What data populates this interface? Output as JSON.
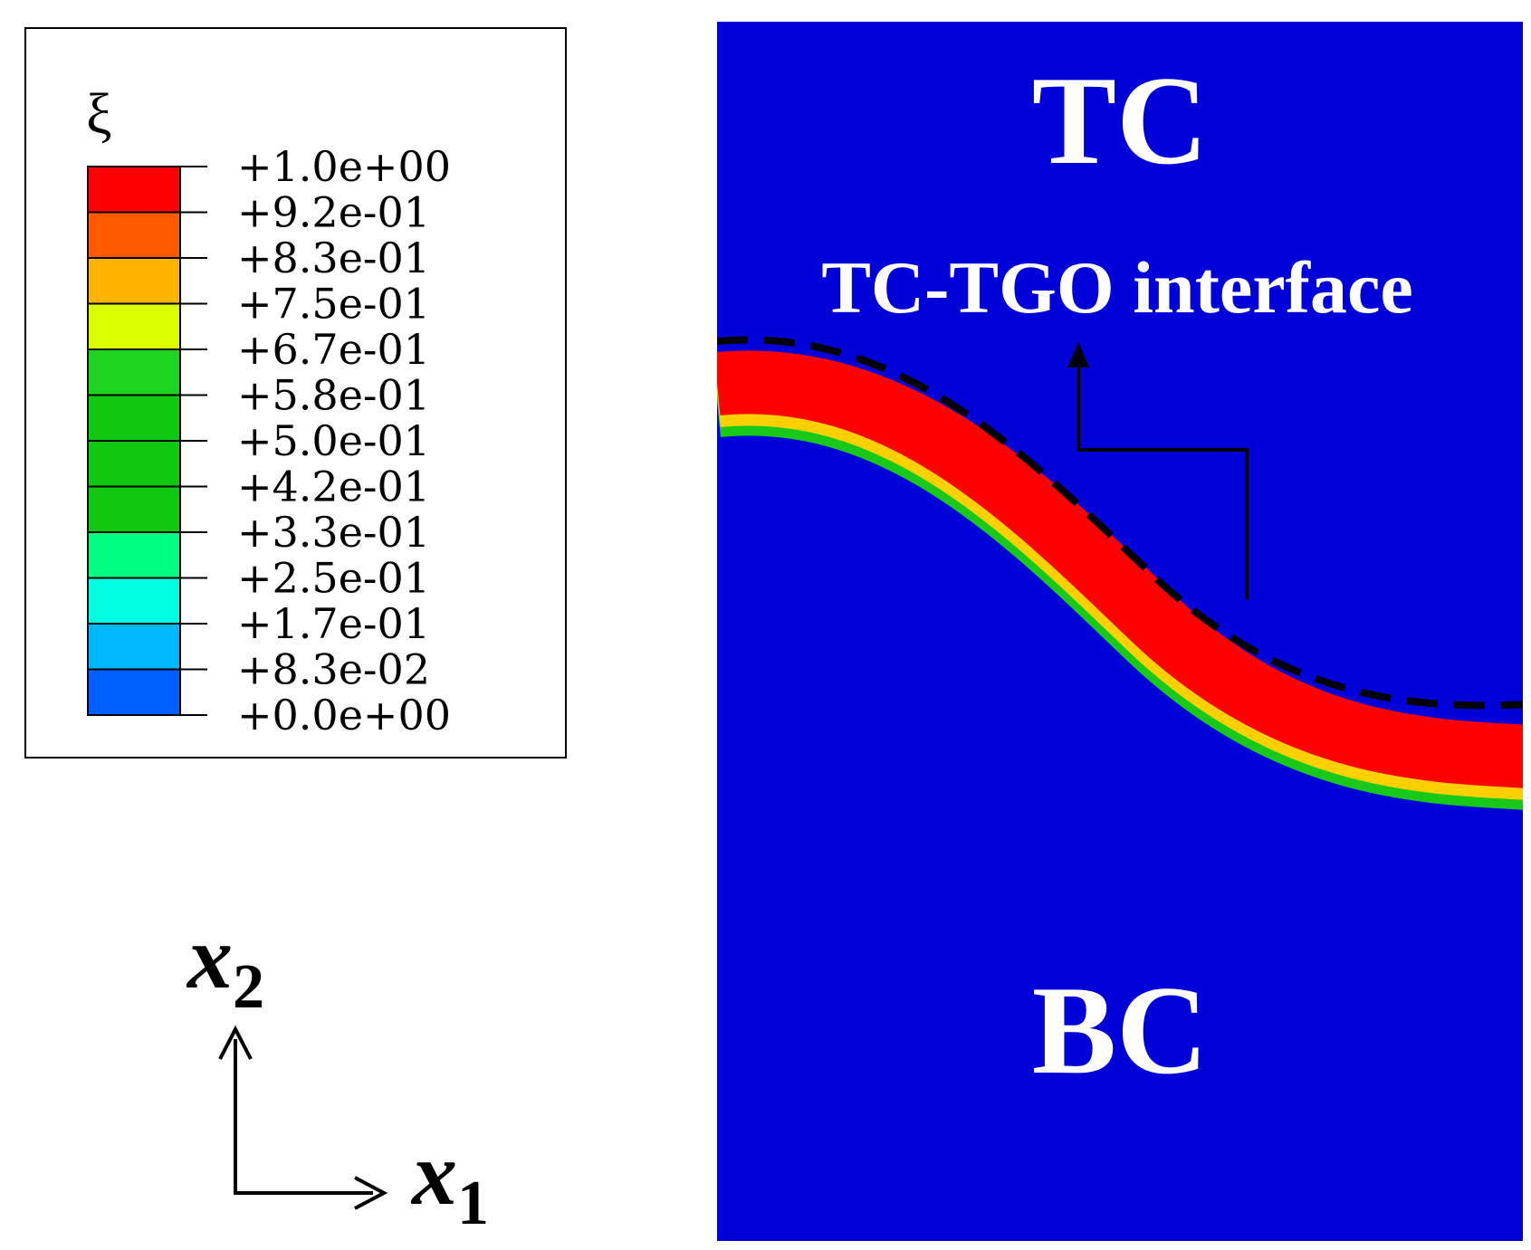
{
  "legend": {
    "symbol": "ξ",
    "levels": [
      {
        "label": "+1.0e+00",
        "color": "#ff0000"
      },
      {
        "label": "+9.2e-01",
        "color": "#ff5a00"
      },
      {
        "label": "+8.3e-01",
        "color": "#ffb400"
      },
      {
        "label": "+7.5e-01",
        "color": "#dcff00"
      },
      {
        "label": "+6.7e-01",
        "color": "#1fd41f"
      },
      {
        "label": "+5.8e-01",
        "color": "#11c811"
      },
      {
        "label": "+5.0e-01",
        "color": "#11c811"
      },
      {
        "label": "+4.2e-01",
        "color": "#11c811"
      },
      {
        "label": "+3.3e-01",
        "color": "#00ff80"
      },
      {
        "label": "+2.5e-01",
        "color": "#00ffdf"
      },
      {
        "label": "+1.7e-01",
        "color": "#00b8ff"
      },
      {
        "label": "+8.3e-02",
        "color": "#0060ff"
      },
      {
        "label": "+0.0e+00",
        "color": "#0a00ff"
      }
    ]
  },
  "axes": {
    "x1": {
      "var": "x",
      "sub": "1"
    },
    "x2": {
      "var": "x",
      "sub": "2"
    }
  },
  "contour": {
    "background_color": "#0000d8",
    "tgo_color": "#ff0000",
    "top_label": "TC",
    "bottom_label": "BC",
    "interface_label": "TC-TGO interface"
  }
}
